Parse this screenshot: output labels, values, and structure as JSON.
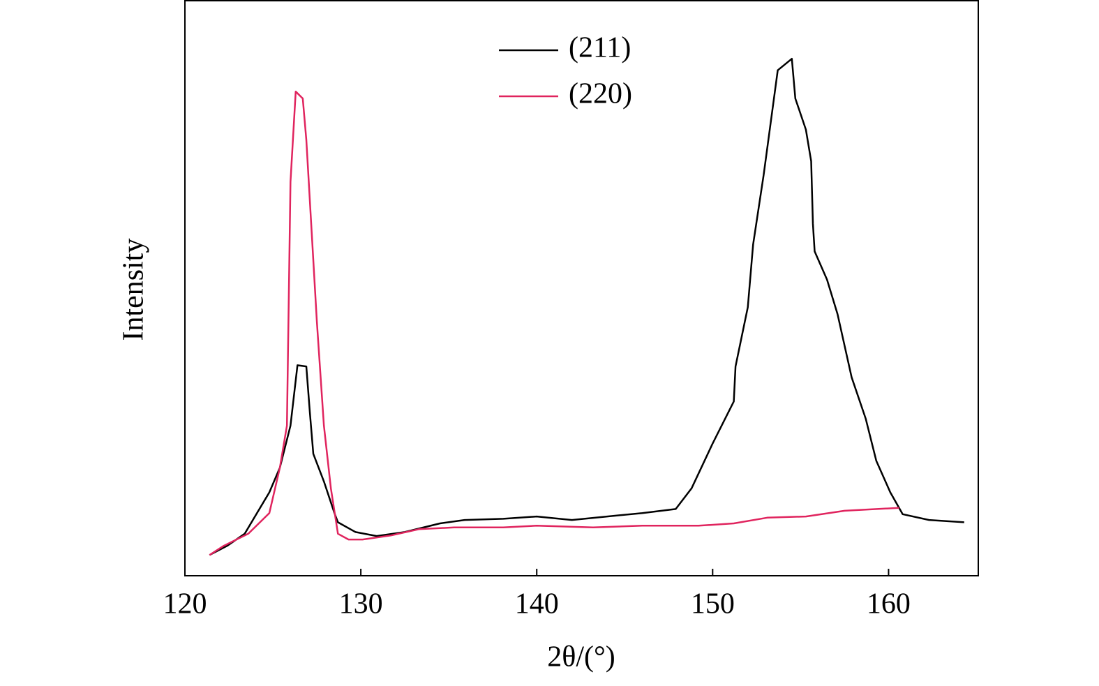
{
  "chart_data": {
    "type": "line",
    "x_label": "2θ/(°)",
    "y_label": "Intensity",
    "xlim": [
      120,
      165.1
    ],
    "xticks": [
      120,
      130,
      140,
      150,
      160
    ],
    "ylim": [
      0,
      100
    ],
    "grid": false,
    "legend": "top",
    "series": [
      {
        "name": "(211)",
        "color": "#000000",
        "x": [
          121.4,
          122.4,
          123.4,
          124.8,
          125.4,
          126.0,
          126.4,
          126.9,
          127.1,
          127.3,
          127.9,
          128.5,
          128.7,
          129.7,
          130.9,
          132.5,
          134.5,
          135.9,
          138.1,
          140.0,
          142.0,
          144.0,
          146.0,
          147.9,
          148.8,
          150.0,
          151.2,
          151.3,
          152.0,
          152.3,
          152.9,
          153.7,
          154.5,
          154.7,
          155.3,
          155.6,
          155.7,
          155.8,
          156.5,
          157.1,
          157.9,
          158.7,
          159.3,
          160.1,
          160.8,
          162.3,
          164.3
        ],
        "values": [
          3.6,
          5.2,
          7.3,
          14.5,
          18.8,
          26.1,
          36.6,
          36.4,
          28.5,
          21.2,
          16.4,
          10.9,
          9.3,
          7.6,
          6.9,
          7.6,
          9.1,
          9.7,
          9.9,
          10.3,
          9.7,
          10.3,
          10.9,
          11.6,
          15.2,
          23.0,
          30.3,
          36.4,
          46.7,
          57.6,
          69.7,
          87.9,
          89.9,
          83.0,
          77.6,
          72.1,
          61.2,
          56.4,
          51.5,
          45.5,
          34.5,
          27.3,
          20.0,
          14.5,
          10.7,
          9.7,
          9.3
        ]
      },
      {
        "name": "(220)",
        "color": "#e0245e",
        "x": [
          121.4,
          122.2,
          123.6,
          124.8,
          125.4,
          125.8,
          126.0,
          126.3,
          126.7,
          126.9,
          127.5,
          127.9,
          128.3,
          128.7,
          129.3,
          130.1,
          131.7,
          133.3,
          135.3,
          138.1,
          140.0,
          143.2,
          146.0,
          149.2,
          151.2,
          153.1,
          155.3,
          157.5,
          158.7,
          160.6
        ],
        "values": [
          3.6,
          5.2,
          7.3,
          10.9,
          18.8,
          26.1,
          68.5,
          84.2,
          83.0,
          75.8,
          44.2,
          26.1,
          15.2,
          7.3,
          6.3,
          6.3,
          7.0,
          8.1,
          8.4,
          8.4,
          8.7,
          8.4,
          8.7,
          8.7,
          9.1,
          10.1,
          10.3,
          11.3,
          11.5,
          11.8
        ]
      }
    ]
  }
}
